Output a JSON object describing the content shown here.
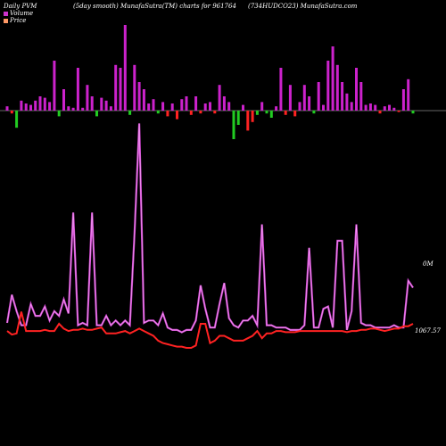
{
  "header": {
    "left": "Daily PVM",
    "center_left": "(5day smooth) MunafaSutra(TM) charts for 961764",
    "center_right": "(734HUDCO23) MunafaSutra.com"
  },
  "legend": {
    "volume_label": "Volume",
    "price_label": "Price",
    "volume_color": "#cc33cc",
    "price_color": "#ff9966"
  },
  "colors": {
    "background": "#000000",
    "volume_up": "#cc22cc",
    "volume_down_red": "#ff2222",
    "volume_down_green": "#22cc22",
    "volume_line": "#cc44cc",
    "price_line": "#ff2222",
    "baseline": "#888888"
  },
  "chart_data": {
    "type": "line",
    "volume_line_label": "0M",
    "price_last_label": "1067.57",
    "volume_line": [
      0.08,
      0.2,
      0.13,
      0.07,
      0.07,
      0.16,
      0.11,
      0.11,
      0.15,
      0.09,
      0.13,
      0.11,
      0.18,
      0.12,
      0.55,
      0.07,
      0.08,
      0.07,
      0.55,
      0.07,
      0.07,
      0.11,
      0.07,
      0.09,
      0.07,
      0.09,
      0.07,
      0.46,
      0.93,
      0.08,
      0.09,
      0.09,
      0.07,
      0.12,
      0.06,
      0.05,
      0.05,
      0.04,
      0.05,
      0.05,
      0.09,
      0.24,
      0.14,
      0.06,
      0.06,
      0.16,
      0.25,
      0.1,
      0.07,
      0.06,
      0.09,
      0.09,
      0.11,
      0.07,
      0.5,
      0.07,
      0.07,
      0.06,
      0.06,
      0.06,
      0.05,
      0.05,
      0.05,
      0.07,
      0.4,
      0.06,
      0.06,
      0.14,
      0.15,
      0.06,
      0.43,
      0.43,
      0.05,
      0.13,
      0.5,
      0.08,
      0.07,
      0.07,
      0.06,
      0.06,
      0.06,
      0.06,
      0.07,
      0.06,
      0.06,
      0.26,
      0.23
    ],
    "price_line": [
      0.07,
      0.055,
      0.06,
      0.15,
      0.07,
      0.07,
      0.07,
      0.07,
      0.075,
      0.07,
      0.07,
      0.1,
      0.08,
      0.07,
      0.075,
      0.075,
      0.08,
      0.075,
      0.075,
      0.08,
      0.085,
      0.06,
      0.06,
      0.06,
      0.065,
      0.07,
      0.06,
      0.07,
      0.08,
      0.07,
      0.06,
      0.05,
      0.03,
      0.02,
      0.015,
      0.01,
      0.005,
      0.005,
      0.0,
      0.0,
      0.01,
      0.1,
      0.1,
      0.02,
      0.03,
      0.05,
      0.05,
      0.04,
      0.03,
      0.03,
      0.03,
      0.04,
      0.05,
      0.07,
      0.04,
      0.06,
      0.06,
      0.07,
      0.07,
      0.065,
      0.065,
      0.065,
      0.07,
      0.07,
      0.07,
      0.07,
      0.07,
      0.07,
      0.07,
      0.07,
      0.07,
      0.07,
      0.065,
      0.07,
      0.07,
      0.075,
      0.075,
      0.08,
      0.08,
      0.075,
      0.07,
      0.075,
      0.08,
      0.08,
      0.09,
      0.09,
      0.1
    ],
    "volume_bars": [
      {
        "v": 0.03,
        "d": "up"
      },
      {
        "v": -0.02,
        "d": "red"
      },
      {
        "v": -0.12,
        "d": "green"
      },
      {
        "v": 0.07,
        "d": "up"
      },
      {
        "v": 0.05,
        "d": "up"
      },
      {
        "v": 0.04,
        "d": "up"
      },
      {
        "v": 0.07,
        "d": "up"
      },
      {
        "v": 0.1,
        "d": "up"
      },
      {
        "v": 0.09,
        "d": "up"
      },
      {
        "v": 0.06,
        "d": "up"
      },
      {
        "v": 0.35,
        "d": "up"
      },
      {
        "v": -0.04,
        "d": "green"
      },
      {
        "v": 0.15,
        "d": "up"
      },
      {
        "v": 0.03,
        "d": "up"
      },
      {
        "v": 0.02,
        "d": "up"
      },
      {
        "v": 0.3,
        "d": "up"
      },
      {
        "v": 0.02,
        "d": "up"
      },
      {
        "v": 0.18,
        "d": "up"
      },
      {
        "v": 0.1,
        "d": "up"
      },
      {
        "v": -0.04,
        "d": "green"
      },
      {
        "v": 0.09,
        "d": "up"
      },
      {
        "v": 0.07,
        "d": "up"
      },
      {
        "v": 0.03,
        "d": "up"
      },
      {
        "v": 0.32,
        "d": "up"
      },
      {
        "v": 0.3,
        "d": "up"
      },
      {
        "v": 0.6,
        "d": "up"
      },
      {
        "v": -0.03,
        "d": "green"
      },
      {
        "v": 0.32,
        "d": "up"
      },
      {
        "v": 0.2,
        "d": "up"
      },
      {
        "v": 0.15,
        "d": "up"
      },
      {
        "v": 0.05,
        "d": "up"
      },
      {
        "v": 0.08,
        "d": "up"
      },
      {
        "v": -0.02,
        "d": "green"
      },
      {
        "v": 0.06,
        "d": "up"
      },
      {
        "v": -0.04,
        "d": "red"
      },
      {
        "v": 0.05,
        "d": "up"
      },
      {
        "v": -0.06,
        "d": "red"
      },
      {
        "v": 0.08,
        "d": "up"
      },
      {
        "v": 0.1,
        "d": "up"
      },
      {
        "v": -0.03,
        "d": "red"
      },
      {
        "v": 0.1,
        "d": "up"
      },
      {
        "v": -0.02,
        "d": "red"
      },
      {
        "v": 0.05,
        "d": "up"
      },
      {
        "v": 0.06,
        "d": "up"
      },
      {
        "v": -0.02,
        "d": "red"
      },
      {
        "v": 0.18,
        "d": "up"
      },
      {
        "v": 0.1,
        "d": "up"
      },
      {
        "v": 0.06,
        "d": "up"
      },
      {
        "v": -0.2,
        "d": "green"
      },
      {
        "v": -0.1,
        "d": "green"
      },
      {
        "v": 0.04,
        "d": "up"
      },
      {
        "v": -0.14,
        "d": "red"
      },
      {
        "v": -0.08,
        "d": "red"
      },
      {
        "v": -0.03,
        "d": "green"
      },
      {
        "v": 0.06,
        "d": "up"
      },
      {
        "v": -0.02,
        "d": "green"
      },
      {
        "v": -0.05,
        "d": "green"
      },
      {
        "v": 0.03,
        "d": "up"
      },
      {
        "v": 0.3,
        "d": "up"
      },
      {
        "v": -0.03,
        "d": "red"
      },
      {
        "v": 0.18,
        "d": "up"
      },
      {
        "v": -0.04,
        "d": "red"
      },
      {
        "v": 0.06,
        "d": "up"
      },
      {
        "v": 0.18,
        "d": "up"
      },
      {
        "v": 0.1,
        "d": "up"
      },
      {
        "v": -0.02,
        "d": "green"
      },
      {
        "v": 0.2,
        "d": "up"
      },
      {
        "v": 0.04,
        "d": "up"
      },
      {
        "v": 0.35,
        "d": "up"
      },
      {
        "v": 0.45,
        "d": "up"
      },
      {
        "v": 0.32,
        "d": "up"
      },
      {
        "v": 0.2,
        "d": "up"
      },
      {
        "v": 0.12,
        "d": "up"
      },
      {
        "v": 0.06,
        "d": "up"
      },
      {
        "v": 0.3,
        "d": "up"
      },
      {
        "v": 0.2,
        "d": "up"
      },
      {
        "v": 0.04,
        "d": "up"
      },
      {
        "v": 0.05,
        "d": "up"
      },
      {
        "v": 0.04,
        "d": "up"
      },
      {
        "v": -0.02,
        "d": "red"
      },
      {
        "v": 0.03,
        "d": "up"
      },
      {
        "v": 0.04,
        "d": "up"
      },
      {
        "v": 0.02,
        "d": "up"
      },
      {
        "v": -0.01,
        "d": "red"
      },
      {
        "v": 0.15,
        "d": "up"
      },
      {
        "v": 0.22,
        "d": "up"
      },
      {
        "v": -0.02,
        "d": "green"
      }
    ]
  }
}
